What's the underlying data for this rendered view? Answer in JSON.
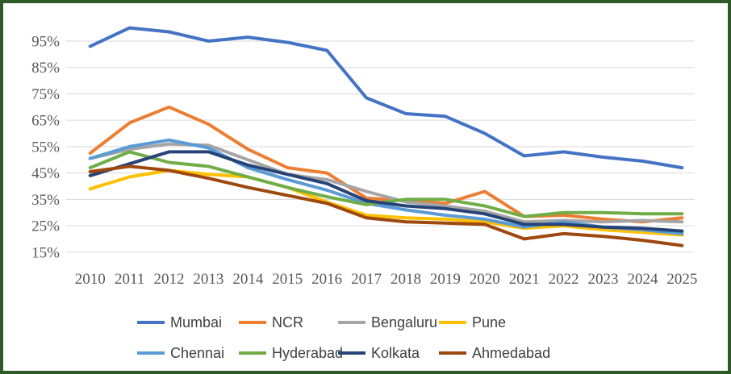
{
  "frame": {
    "border_color": "#2e5a28",
    "background_color": "#ffffff",
    "gridline_color": "#d9d9d9",
    "tick_label_color": "#595959",
    "legend_label_color": "#404040"
  },
  "chart_data": {
    "type": "line",
    "title": "",
    "xlabel": "",
    "ylabel": "",
    "categories": [
      "2010",
      "2011",
      "2012",
      "2013",
      "2014",
      "2015",
      "2016",
      "2017",
      "2018",
      "2019",
      "2020",
      "2021",
      "2022",
      "2023",
      "2024",
      "2025"
    ],
    "y_ticks": [
      95,
      85,
      75,
      65,
      55,
      45,
      35,
      25,
      15
    ],
    "y_tick_labels": [
      "95%",
      "85%",
      "75%",
      "65%",
      "55%",
      "45%",
      "35%",
      "25%",
      "15%"
    ],
    "ylim": [
      15,
      101
    ],
    "grid": "horizontal",
    "legend_position": "bottom",
    "legend_rows": 2,
    "legend_columns": 4,
    "series": [
      {
        "name": "Mumbai",
        "color": "#4472C4",
        "values": [
          93,
          100,
          98.5,
          95,
          96.5,
          94.5,
          91.5,
          73.5,
          67.5,
          66.5,
          60,
          51.5,
          53,
          51,
          49.5,
          47
        ]
      },
      {
        "name": "NCR",
        "color": "#ED7D31",
        "values": [
          52.5,
          64,
          70,
          63.5,
          54,
          47,
          45,
          35.5,
          34.5,
          33.5,
          38,
          28.5,
          29,
          27.5,
          26.5,
          28
        ]
      },
      {
        "name": "Bengaluru",
        "color": "#A5A5A5",
        "values": [
          50.5,
          54,
          56,
          55.5,
          50,
          44.5,
          42.5,
          38,
          34,
          32.5,
          30.5,
          26.5,
          27,
          26.5,
          27,
          26.5
        ]
      },
      {
        "name": "Pune",
        "color": "#FFC000",
        "values": [
          39,
          43.5,
          46,
          44.5,
          43.5,
          39.5,
          34,
          29,
          28,
          27.5,
          26.5,
          24,
          25,
          23.5,
          22.5,
          21.5
        ]
      },
      {
        "name": "Chennai",
        "color": "#5B9BD5",
        "values": [
          50.5,
          55,
          57.5,
          54.5,
          47,
          42.5,
          38.5,
          33.5,
          31,
          29,
          27.5,
          24.5,
          26.5,
          24.5,
          23.5,
          22
        ]
      },
      {
        "name": "Hyderabad",
        "color": "#70AD47",
        "values": [
          47,
          53,
          49,
          47.5,
          43.5,
          39.5,
          36,
          33,
          35,
          35,
          32.5,
          28.5,
          30,
          30,
          29.5,
          29.5
        ]
      },
      {
        "name": "Kolkata",
        "color": "#264478",
        "values": [
          44,
          48.5,
          53,
          53,
          48,
          44.5,
          41,
          34.5,
          32.5,
          31.5,
          29.5,
          25.5,
          25.5,
          24.5,
          24,
          23
        ]
      },
      {
        "name": "Ahmedabad",
        "color": "#9E480E",
        "values": [
          45.5,
          47.5,
          46,
          43,
          39.5,
          36.5,
          33.5,
          28,
          26.5,
          26,
          25.5,
          20,
          22,
          21,
          19.5,
          17.5
        ]
      }
    ]
  }
}
